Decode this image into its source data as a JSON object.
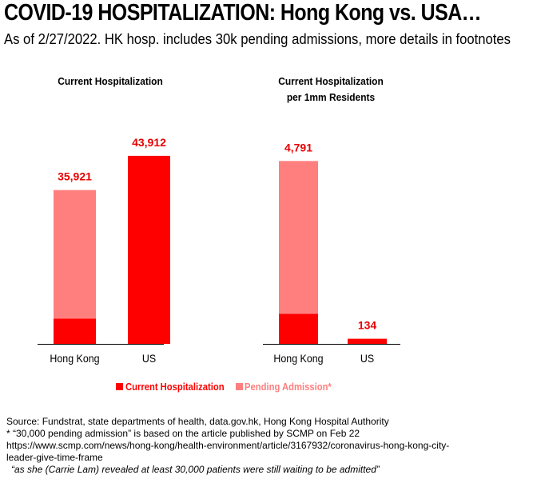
{
  "header": {
    "title": "COVID-19 HOSPITALIZATION: Hong Kong vs. USA…",
    "subtitle": "As of 2/27/2022. HK hosp. includes 30k pending admissions, more details in footnotes"
  },
  "colors": {
    "current": "#ff0000",
    "pending": "#ff7f7f",
    "label": "#e60000",
    "axis": "#000000"
  },
  "chart_data": [
    {
      "type": "bar",
      "stacked": true,
      "title": "Current Hospitalization",
      "categories": [
        "Hong Kong",
        "US"
      ],
      "series": [
        {
          "name": "Current Hospitalization",
          "values": [
            5921,
            43912
          ]
        },
        {
          "name": "Pending Admission*",
          "values": [
            30000,
            0
          ]
        }
      ],
      "totals": [
        35921,
        43912
      ],
      "total_labels": [
        "35,921",
        "43,912"
      ],
      "ylim": [
        0,
        48000
      ],
      "grid": false,
      "legend": "bottom"
    },
    {
      "type": "bar",
      "stacked": true,
      "title": "Current Hospitalization per 1mm Residents",
      "title_lines": [
        "Current Hospitalization",
        "per 1mm Residents"
      ],
      "categories": [
        "Hong Kong",
        "US"
      ],
      "series": [
        {
          "name": "Current Hospitalization",
          "values": [
            790,
            134
          ]
        },
        {
          "name": "Pending Admission*",
          "values": [
            4001,
            0
          ]
        }
      ],
      "totals": [
        4791,
        134
      ],
      "total_labels": [
        "4,791",
        "134"
      ],
      "ylim": [
        0,
        5950
      ],
      "grid": false,
      "legend": "bottom"
    }
  ],
  "legend": [
    {
      "label": "Current Hospitalization",
      "color": "#ff0000"
    },
    {
      "label": "Pending Admission*",
      "color": "#ff7f7f"
    }
  ],
  "footnotes": {
    "source": "Source: Fundstrat, state departments of health, data.gov.hk, Hong Kong Hospital Authority",
    "note": "* “30,000 pending admission” is based on the article published by SCMP on Feb 22",
    "url_line1": "https://www.scmp.com/news/hong-kong/health-environment/article/3167932/coronavirus-hong-kong-city-",
    "url_line2": "leader-give-time-frame",
    "quote": "“as she (Carrie Lam) revealed at least 30,000 patients were still waiting to be admitted”"
  }
}
